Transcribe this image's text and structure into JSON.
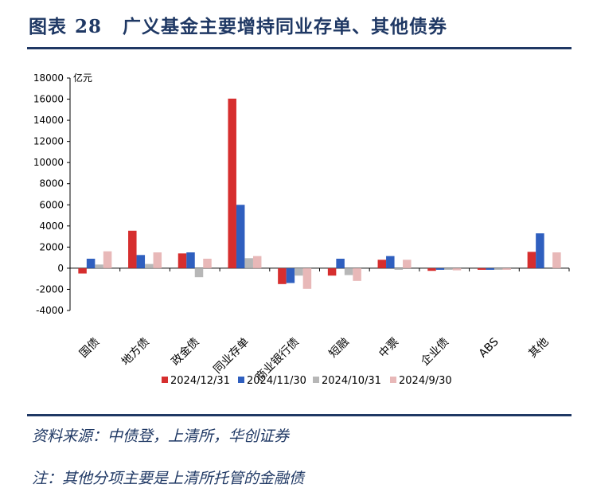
{
  "header": {
    "label": "图表",
    "number": "28",
    "text": "广义基金主要增持同业存单、其他债券"
  },
  "footer": {
    "source": "资料来源：中债登，上清所，华创证券",
    "note": "注：其他分项主要是上清所托管的金融债"
  },
  "chart_data": {
    "type": "bar",
    "unit_label": "亿元",
    "categories": [
      "国债",
      "地方债",
      "政金债",
      "同业存单",
      "商业银行债",
      "短融",
      "中票",
      "企业债",
      "ABS",
      "其他"
    ],
    "series": [
      {
        "name": "2024/12/31",
        "color": "#d62e2e",
        "values": [
          -500,
          3550,
          1400,
          16050,
          -1500,
          -700,
          800,
          -250,
          -150,
          1550
        ]
      },
      {
        "name": "2024/11/30",
        "color": "#2f5fbf",
        "values": [
          900,
          1250,
          1500,
          6000,
          -1400,
          900,
          1150,
          -150,
          -150,
          3300
        ]
      },
      {
        "name": "2024/10/31",
        "color": "#b7b7b7",
        "values": [
          350,
          400,
          -850,
          950,
          -700,
          -650,
          -150,
          -150,
          -150,
          0
        ]
      },
      {
        "name": "2024/9/30",
        "color": "#e8b8b8",
        "values": [
          1600,
          1500,
          900,
          1150,
          -1950,
          -1200,
          800,
          -200,
          -150,
          1500
        ]
      }
    ],
    "ylim": [
      -4000,
      18000
    ],
    "yticks": [
      18000,
      16000,
      14000,
      12000,
      10000,
      8000,
      6000,
      4000,
      2000,
      0,
      -2000,
      -4000
    ],
    "legend_position": "bottom",
    "grid": false
  }
}
